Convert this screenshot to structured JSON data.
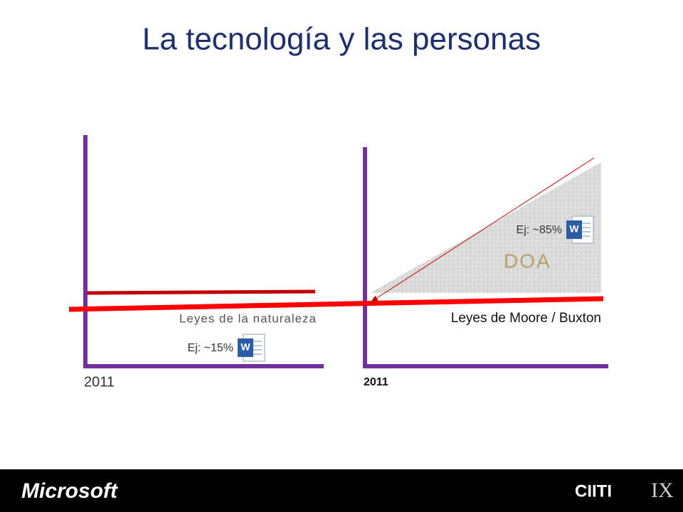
{
  "title": "La tecnología y las personas",
  "left_panel": {
    "curve_label": "Leyes de la naturaleza",
    "example": "Ej: ~15%",
    "year": "2011"
  },
  "right_panel": {
    "example": "Ej: ~85%",
    "area_label": "DOA",
    "curve_label": "Leyes de Moore / Buxton",
    "year": "2011"
  },
  "footer": {
    "left_logo": "Microsoft",
    "right_logo_1": "CIITI",
    "right_logo_2": "IX"
  }
}
